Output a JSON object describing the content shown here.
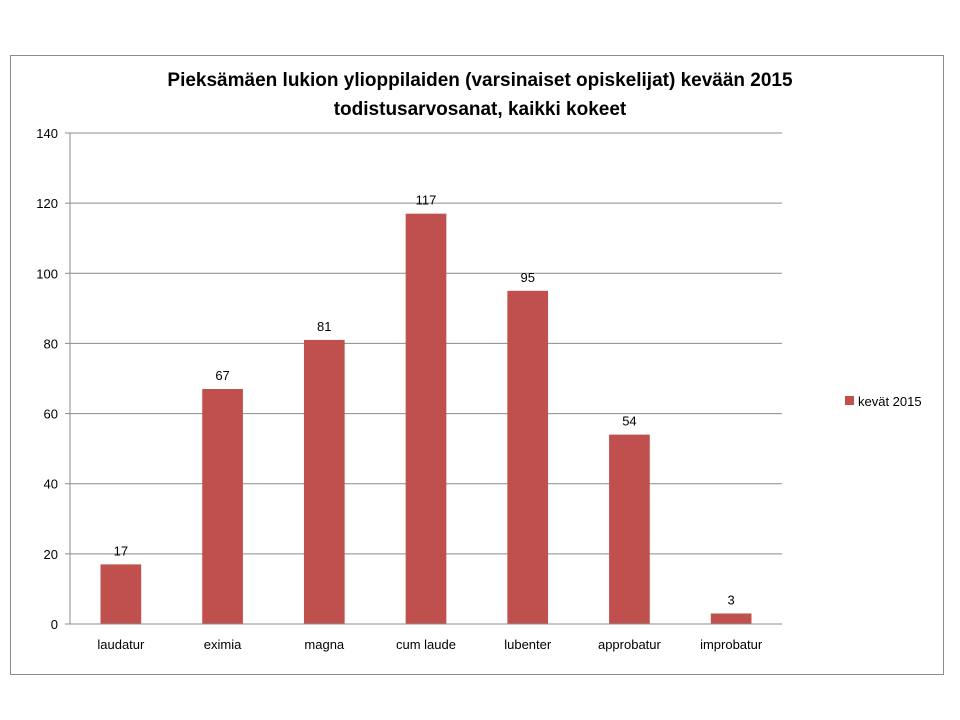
{
  "chart_data": {
    "type": "bar",
    "title": "Pieksämäen lukion ylioppilaiden (varsinaiset opiskelijat) kevään 2015 todistusarvosanat, kaikki kokeet",
    "title_lines": [
      "Pieksämäen lukion ylioppilaiden (varsinaiset opiskelijat) kevään 2015",
      "todistusarvosanat, kaikki kokeet"
    ],
    "categories": [
      "laudatur",
      "eximia",
      "magna",
      "cum laude",
      "lubenter",
      "approbatur",
      "improbatur"
    ],
    "series": [
      {
        "name": "kevät 2015",
        "values": [
          17,
          67,
          81,
          117,
          95,
          54,
          3
        ],
        "color": "#c0504d"
      }
    ],
    "ylim": [
      0,
      140
    ],
    "yticks": [
      0,
      20,
      40,
      60,
      80,
      100,
      120,
      140
    ],
    "grid": true,
    "data_labels": true,
    "legend": "right",
    "xlabel": "",
    "ylabel": ""
  }
}
